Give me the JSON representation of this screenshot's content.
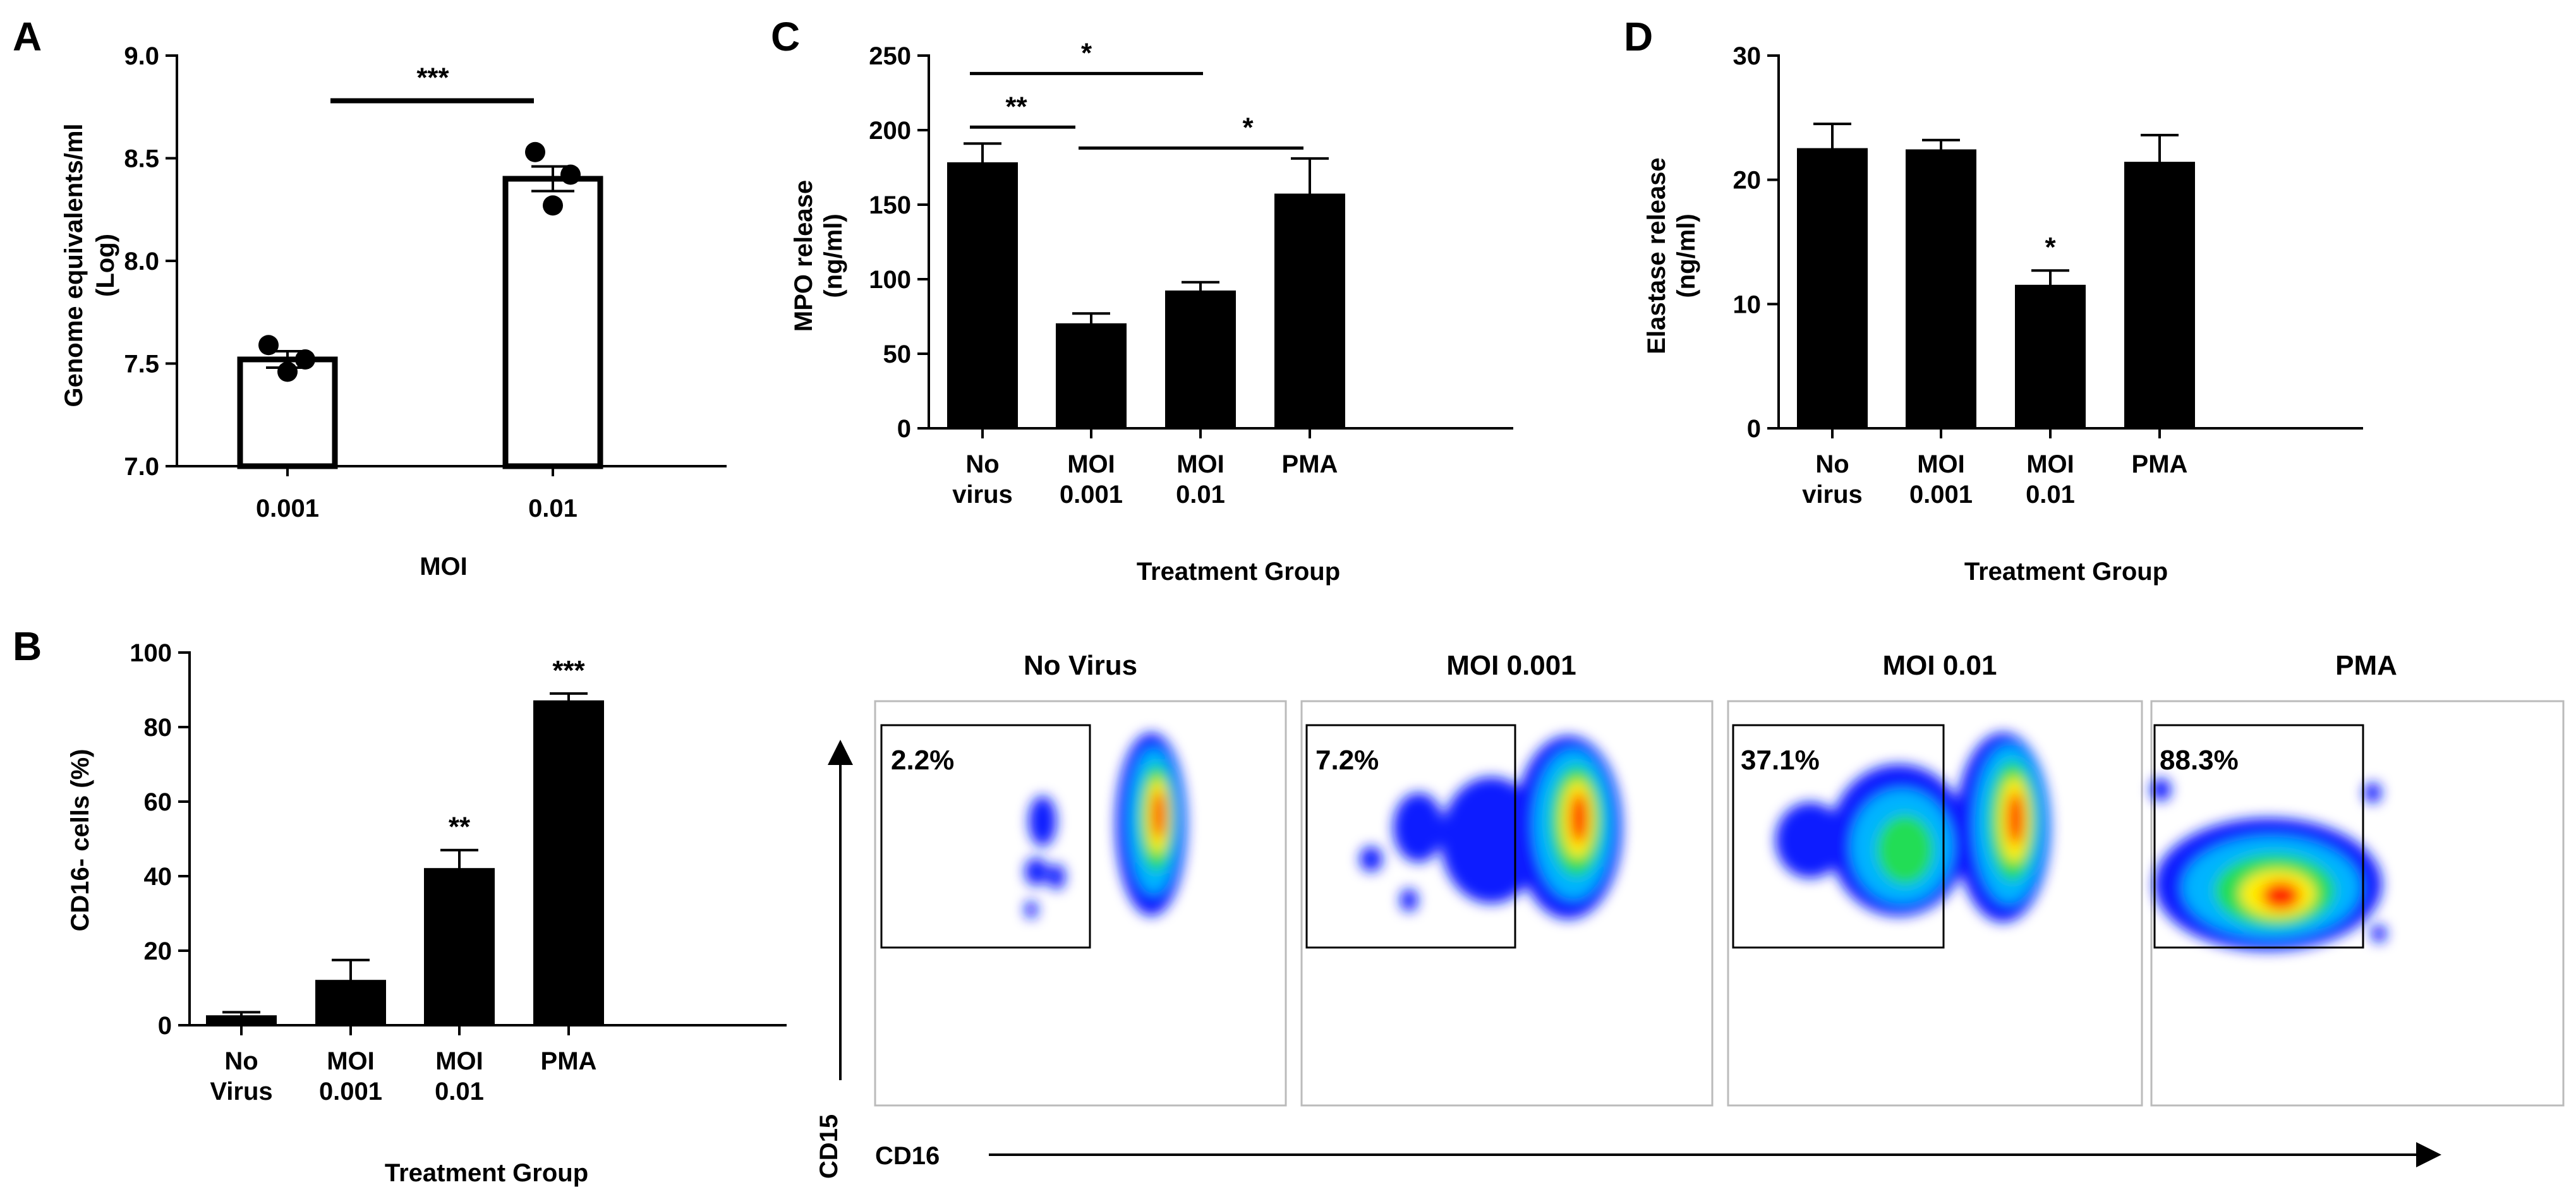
{
  "chart_data": [
    {
      "panel": "A",
      "type": "bar",
      "categories": [
        "0.001",
        "0.01"
      ],
      "values": [
        7.52,
        8.4
      ],
      "errors": [
        0.04,
        0.06
      ],
      "points": [
        [
          7.59,
          7.52,
          7.46
        ],
        [
          8.53,
          8.42,
          8.27
        ]
      ],
      "ylim": [
        7.0,
        9.0
      ],
      "yticks": [
        "7.0",
        "7.5",
        "8.0",
        "8.5",
        "9.0"
      ],
      "xlabel": "MOI",
      "ylabel_line1": "Genome equivalents/ml",
      "ylabel_line2": "(Log)",
      "fill": "#ffffff",
      "significance": [
        "***"
      ]
    },
    {
      "panel": "B",
      "type": "bar",
      "categories": [
        [
          "No",
          "Virus"
        ],
        [
          "MOI",
          "0.001"
        ],
        [
          "MOI",
          "0.01"
        ],
        [
          "PMA",
          ""
        ]
      ],
      "values": [
        2.5,
        12,
        42,
        87
      ],
      "errors": [
        1.0,
        5.5,
        5.0,
        2.0
      ],
      "ylim": [
        0,
        100
      ],
      "yticks": [
        "0",
        "20",
        "40",
        "60",
        "80",
        "100"
      ],
      "xlabel": "Treatment Group",
      "ylabel": "CD16- cells (%)",
      "fill": "#000000",
      "significance": [
        "",
        "",
        "**",
        "***"
      ]
    },
    {
      "panel": "C",
      "type": "bar",
      "categories": [
        [
          "No",
          "virus"
        ],
        [
          "MOI",
          "0.001"
        ],
        [
          "MOI",
          "0.01"
        ],
        [
          "PMA",
          ""
        ]
      ],
      "values": [
        178,
        70,
        92,
        157
      ],
      "errors": [
        13,
        7,
        6,
        24
      ],
      "ylim": [
        0,
        250
      ],
      "yticks": [
        "0",
        "50",
        "100",
        "150",
        "200",
        "250"
      ],
      "xlabel": "Treatment Group",
      "ylabel_line1": "MPO release",
      "ylabel_line2": "(ng/ml)",
      "fill": "#000000",
      "brackets": [
        "*",
        "**",
        "*"
      ]
    },
    {
      "panel": "D",
      "type": "bar",
      "categories": [
        [
          "No",
          "virus"
        ],
        [
          "MOI",
          "0.001"
        ],
        [
          "MOI",
          "0.01"
        ],
        [
          "PMA",
          ""
        ]
      ],
      "values": [
        22.5,
        22.4,
        11.5,
        21.4
      ],
      "errors": [
        2.0,
        0.8,
        1.2,
        2.2
      ],
      "ylim": [
        0,
        30
      ],
      "yticks": [
        "0",
        "10",
        "20",
        "30"
      ],
      "xlabel": "Treatment Group",
      "ylabel_line1": "Elastase release",
      "ylabel_line2": "(ng/ml)",
      "fill": "#000000",
      "significance": [
        "",
        "",
        "*",
        ""
      ]
    }
  ],
  "flow": {
    "panels": [
      {
        "title": "No Virus",
        "gate_percent": "2.2%"
      },
      {
        "title": "MOI 0.001",
        "gate_percent": "7.2%"
      },
      {
        "title": "MOI 0.01",
        "gate_percent": "37.1%"
      },
      {
        "title": "PMA",
        "gate_percent": "88.3%"
      }
    ],
    "x_axis_label": "CD16",
    "y_axis_label": "CD15",
    "density_colors": [
      "#0a1eff",
      "#00b4ff",
      "#22dd55",
      "#ffee00",
      "#ff2200"
    ]
  }
}
